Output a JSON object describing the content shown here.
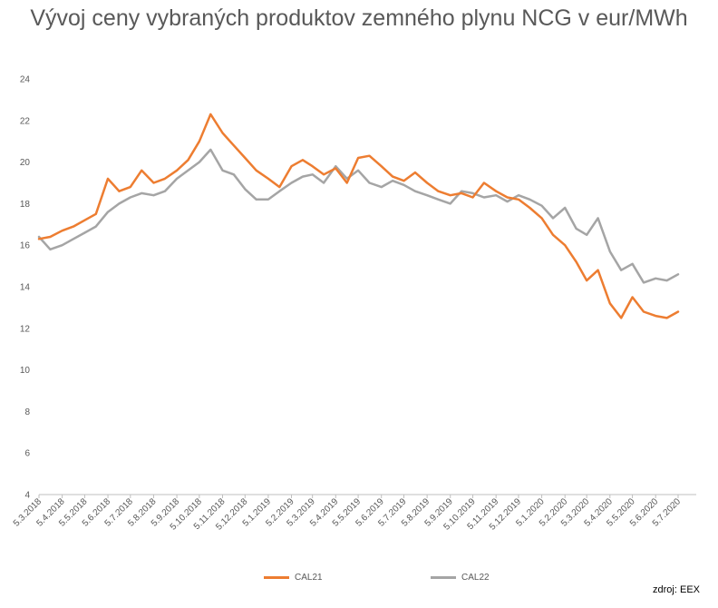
{
  "chart_data": {
    "type": "line",
    "title": "Vývoj ceny vybraných produktov zemného plynu NCG  v eur/MWh",
    "ylim": [
      4,
      24
    ],
    "yticks": [
      4,
      6,
      8,
      10,
      12,
      14,
      16,
      18,
      20,
      22,
      24
    ],
    "grid": false,
    "legend_position": "bottom",
    "x_tick_labels": [
      "5.3.2018",
      "5.4.2018",
      "5.5.2018",
      "5.6.2018",
      "5.7.2018",
      "5.8.2018",
      "5.9.2018",
      "5.10.2018",
      "5.11.2018",
      "5.12.2018",
      "5.1.2019",
      "5.2.2019",
      "5.3.2019",
      "5.4.2019",
      "5.5.2019",
      "5.6.2019",
      "5.7.2019",
      "5.8.2019",
      "5.9.2019",
      "5.10.2019",
      "5.11.2019",
      "5.12.2019",
      "5.1.2020",
      "5.2.2020",
      "5.3.2020",
      "5.4.2020",
      "5.5.2020",
      "5.6.2020",
      "5.7.2020"
    ],
    "x": [
      "2018-03-05",
      "2018-03-20",
      "2018-04-05",
      "2018-04-20",
      "2018-05-05",
      "2018-05-20",
      "2018-06-05",
      "2018-06-20",
      "2018-07-05",
      "2018-07-20",
      "2018-08-05",
      "2018-08-20",
      "2018-09-05",
      "2018-09-20",
      "2018-10-05",
      "2018-10-20",
      "2018-11-05",
      "2018-11-20",
      "2018-12-05",
      "2018-12-20",
      "2019-01-05",
      "2019-01-20",
      "2019-02-05",
      "2019-02-20",
      "2019-03-05",
      "2019-03-20",
      "2019-04-05",
      "2019-04-20",
      "2019-05-05",
      "2019-05-20",
      "2019-06-05",
      "2019-06-20",
      "2019-07-05",
      "2019-07-20",
      "2019-08-05",
      "2019-08-20",
      "2019-09-05",
      "2019-09-20",
      "2019-10-05",
      "2019-10-20",
      "2019-11-05",
      "2019-11-20",
      "2019-12-05",
      "2019-12-20",
      "2020-01-05",
      "2020-01-20",
      "2020-02-05",
      "2020-02-20",
      "2020-03-05",
      "2020-03-20",
      "2020-04-05",
      "2020-04-20",
      "2020-05-05",
      "2020-05-20",
      "2020-06-05",
      "2020-06-20",
      "2020-07-05"
    ],
    "series": [
      {
        "name": "CAL21",
        "color": "#ed7d31",
        "values": [
          16.3,
          16.4,
          16.7,
          16.9,
          17.2,
          17.5,
          19.2,
          18.6,
          18.8,
          19.6,
          19.0,
          19.2,
          19.6,
          20.1,
          21.0,
          22.3,
          21.4,
          20.8,
          20.2,
          19.6,
          19.2,
          18.8,
          19.8,
          20.1,
          19.8,
          19.4,
          19.7,
          19.0,
          20.2,
          20.3,
          19.8,
          19.3,
          19.1,
          19.5,
          19.0,
          18.6,
          18.4,
          18.5,
          18.3,
          19.0,
          18.6,
          18.3,
          18.2,
          17.8,
          17.3,
          16.5,
          16.0,
          15.2,
          14.3,
          14.8,
          13.2,
          12.5,
          13.5,
          12.8,
          12.6,
          12.5,
          12.8
        ]
      },
      {
        "name": "CAL22",
        "color": "#a5a5a5",
        "values": [
          16.4,
          15.8,
          16.0,
          16.3,
          16.6,
          16.9,
          17.6,
          18.0,
          18.3,
          18.5,
          18.4,
          18.6,
          19.2,
          19.6,
          20.0,
          20.6,
          19.6,
          19.4,
          18.7,
          18.2,
          18.2,
          18.6,
          19.0,
          19.3,
          19.4,
          19.0,
          19.8,
          19.2,
          19.6,
          19.0,
          18.8,
          19.1,
          18.9,
          18.6,
          18.4,
          18.2,
          18.0,
          18.6,
          18.5,
          18.3,
          18.4,
          18.1,
          18.4,
          18.2,
          17.9,
          17.3,
          17.8,
          16.8,
          16.5,
          17.3,
          15.7,
          14.8,
          15.1,
          14.2,
          14.4,
          14.3,
          14.6
        ]
      }
    ],
    "source": "zdroj: EEX"
  }
}
